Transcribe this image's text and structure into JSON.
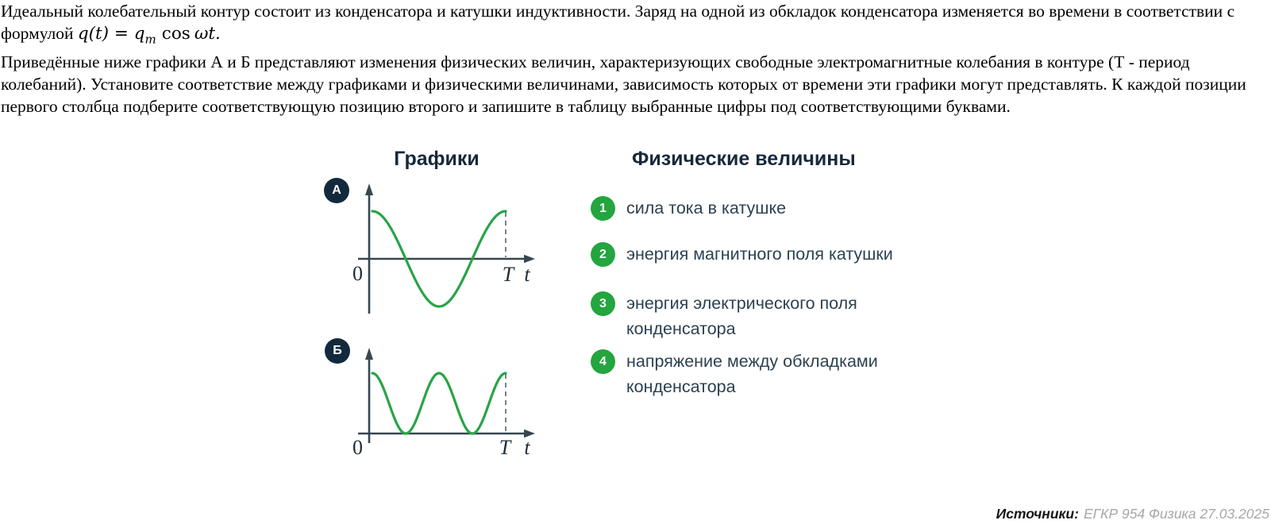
{
  "problem": {
    "paragraph1_before_formula": "Идеальный колебательный контур состоит из конденсатора и катушки индуктивности. Заряд на одной из обкладок конденсатора изменяется во времени в соответствии с формулой",
    "formula": {
      "lhs": "q(t) = q",
      "sub": "m",
      "op": "cos",
      "arg": "ωt."
    },
    "paragraph2": "Приведённые ниже графики А и Б представляют изменения физических величин, характеризующих свободные электромагнитные колебания в контуре (Т - период колебаний). Установите соответствие между графиками и физическими величинами, зависимость которых от времени эти графики могут представлять. К каждой позиции первого столбца подберите соответствующую позицию второго и запишите в таблицу выбранные цифры под соответствующими буквами."
  },
  "graphs_section": {
    "title": "Графики",
    "graphs": [
      {
        "id": "A",
        "badge": "А",
        "axis_labels": {
          "origin": "0",
          "period": "T",
          "time": "t"
        }
      },
      {
        "id": "B",
        "badge": "Б",
        "axis_labels": {
          "origin": "0",
          "period": "T",
          "time": "t"
        }
      }
    ]
  },
  "quantities_section": {
    "title": "Физические величины",
    "items": [
      {
        "number": "1",
        "lines": [
          "сила тока в катушке",
          ""
        ]
      },
      {
        "number": "2",
        "lines": [
          "энергия магнитного поля катушки",
          ""
        ]
      },
      {
        "number": "3",
        "lines": [
          "энергия электрического поля",
          "конденсатора"
        ]
      },
      {
        "number": "4",
        "lines": [
          "напряжение между обкладками",
          "конденсатора"
        ]
      }
    ]
  },
  "footer": {
    "label": "Источники:",
    "source": "ЕГКР 954 Физика 27.03.2025"
  },
  "colors": {
    "curve_green": "#28a447",
    "number_badge_green": "#23a53f",
    "letter_badge_navy": "#122a3c",
    "axis_dark": "#36474f",
    "heading_navy": "#16293b",
    "item_text": "#2c4152",
    "source_gray": "#a7a7a7"
  },
  "chart_data": [
    {
      "id": "A",
      "type": "line",
      "badge": "А",
      "function": "cos",
      "formula": "y(t) = cos(2πt/T)",
      "x_unit": "t/T",
      "x": [
        0,
        0.125,
        0.25,
        0.375,
        0.5,
        0.625,
        0.75,
        0.875,
        1
      ],
      "y": [
        1,
        0.71,
        0,
        -0.71,
        -1,
        -0.71,
        0,
        0.71,
        1
      ],
      "xlabel": "t",
      "x_ticks": [
        "0",
        "T"
      ],
      "ylim": [
        -1,
        1
      ],
      "grid": false,
      "curve_color": "#28a447"
    },
    {
      "id": "B",
      "type": "line",
      "badge": "Б",
      "function": "cos_squared",
      "formula": "y(t) = cos²(2πt/T)",
      "x_unit": "t/T",
      "x": [
        0,
        0.125,
        0.25,
        0.375,
        0.5,
        0.625,
        0.75,
        0.875,
        1
      ],
      "y": [
        1,
        0.5,
        0,
        0.5,
        1,
        0.5,
        0,
        0.5,
        1
      ],
      "xlabel": "t",
      "x_ticks": [
        "0",
        "T"
      ],
      "ylim": [
        0,
        1
      ],
      "grid": false,
      "curve_color": "#28a447"
    }
  ]
}
